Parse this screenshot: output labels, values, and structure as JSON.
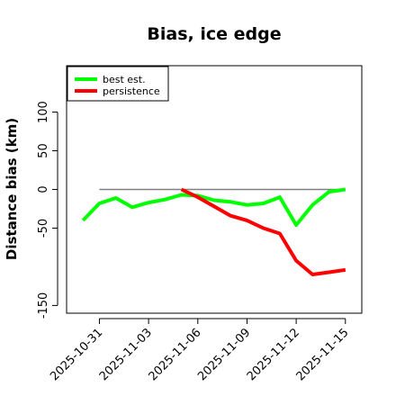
{
  "chart_data": {
    "type": "line",
    "title": "Bias, ice edge",
    "xlabel": "",
    "ylabel": "Distance bias (km)",
    "ylim": [
      -160,
      160
    ],
    "xlim": [
      "2025-10-29",
      "2025-11-16"
    ],
    "x_ticks": [
      "2025-10-31",
      "2025-11-03",
      "2025-11-06",
      "2025-11-09",
      "2025-11-12",
      "2025-11-15"
    ],
    "y_ticks": [
      -150,
      -50,
      0,
      50,
      100
    ],
    "reference_line": {
      "y": 0,
      "from": "2025-10-31",
      "to": "2025-11-15",
      "color": "#808080"
    },
    "legend_position": "top-left",
    "series": [
      {
        "name": "best est.",
        "color": "#00ff00",
        "x": [
          "2025-10-30",
          "2025-10-31",
          "2025-11-01",
          "2025-11-02",
          "2025-11-03",
          "2025-11-04",
          "2025-11-05",
          "2025-11-06",
          "2025-11-07",
          "2025-11-08",
          "2025-11-09",
          "2025-11-10",
          "2025-11-11",
          "2025-11-12",
          "2025-11-13",
          "2025-11-14",
          "2025-11-15"
        ],
        "values": [
          -40,
          -18,
          -11,
          -23,
          -17,
          -13,
          -7,
          -8,
          -14,
          -16,
          -20,
          -18,
          -10,
          -46,
          -20,
          -3,
          0
        ]
      },
      {
        "name": "persistence",
        "color": "#ff0000",
        "x": [
          "2025-11-05",
          "2025-11-06",
          "2025-11-07",
          "2025-11-08",
          "2025-11-09",
          "2025-11-10",
          "2025-11-11",
          "2025-11-12",
          "2025-11-13",
          "2025-11-14",
          "2025-11-15"
        ],
        "values": [
          0,
          -10,
          -22,
          -34,
          -40,
          -50,
          -57,
          -92,
          -110,
          -107,
          -104
        ]
      }
    ]
  }
}
